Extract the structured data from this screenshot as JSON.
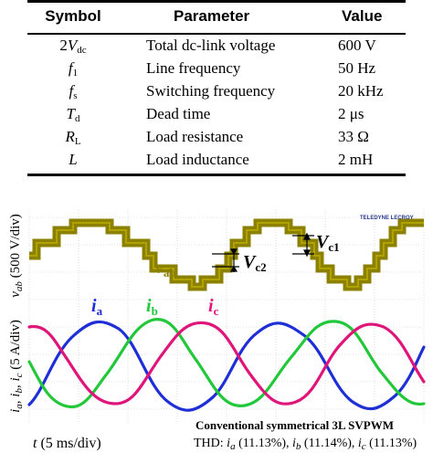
{
  "table": {
    "headers": {
      "symbol": "Symbol",
      "parameter": "Parameter",
      "value": "Value"
    },
    "rows": [
      {
        "sym_pre": "2",
        "sym": "V",
        "sub": "dc",
        "parameter": "Total dc-link voltage",
        "value": "600 V"
      },
      {
        "sym_pre": "",
        "sym": "f",
        "sub": "1",
        "parameter": "Line frequency",
        "value": "50 Hz"
      },
      {
        "sym_pre": "",
        "sym": "f",
        "sub": "s",
        "parameter": "Switching frequency",
        "value": "20 kHz"
      },
      {
        "sym_pre": "",
        "sym": "T",
        "sub": "d",
        "parameter": "Dead time",
        "value": "2 μs"
      },
      {
        "sym_pre": "",
        "sym": "R",
        "sub": "L",
        "parameter": "Load resistance",
        "value": "33 Ω"
      },
      {
        "sym_pre": "",
        "sym": "L",
        "sub": "",
        "parameter": "Load inductance",
        "value": "2 mH"
      }
    ]
  },
  "scope": {
    "brand": "TELEDYNE LECROY",
    "ylabel_voltage": {
      "sym": "v",
      "sub": "ab",
      "rest": " (500 V/div)"
    },
    "ylabel_current": {
      "text": "i",
      "sub1": "a",
      "mid1": ", i",
      "sub2": "b",
      "mid2": ", i",
      "sub3": "c",
      "rest": " (5 A/div)"
    },
    "xlabel": {
      "sym": "t",
      "rest": " (5 ms/div)"
    },
    "method": "Conventional symmetrical 3L SVPWM",
    "thd": {
      "prefix": "THD: ",
      "a": {
        "sub": "a",
        "val": " (11.13%)"
      },
      "b": {
        "sub": "b",
        "val": " (11.14%)"
      },
      "c": {
        "sub": "c",
        "val": " (11.13%)"
      }
    },
    "labels": {
      "vab": {
        "sym": "v",
        "sub": "ab"
      },
      "vc1": {
        "sym": "V",
        "sub": "c1"
      },
      "vc2": {
        "sym": "V",
        "sub": "c2"
      },
      "ia": {
        "sym": "i",
        "sub": "a"
      },
      "ib": {
        "sym": "i",
        "sub": "b"
      },
      "ic": {
        "sym": "i",
        "sub": "c"
      }
    },
    "colors": {
      "voltage": "#8b8000",
      "ia": "#1f2fd6",
      "ib": "#22c83a",
      "ic": "#e0157a"
    }
  }
}
